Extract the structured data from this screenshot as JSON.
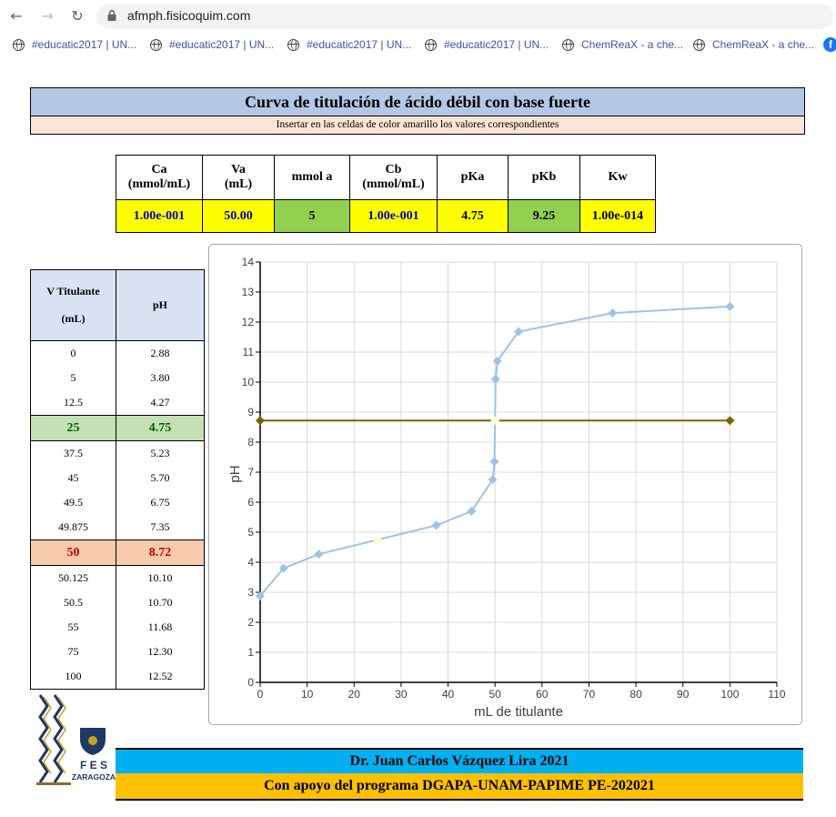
{
  "browser": {
    "url": "afmph.fisicoquim.com",
    "bookmarks": [
      "#educatic2017 | UN...",
      "#educatic2017 | UN...",
      "#educatic2017 | UN...",
      "#educatic2017 | UN...",
      "ChemReaX - a che...",
      "ChemReaX - a che..."
    ]
  },
  "header": {
    "title": "Curva de titulación de ácido débil con base fuerte",
    "subtitle": "Insertar en las celdas de color amarillo los valores correspondientes"
  },
  "params": {
    "headers": [
      "Ca",
      "(mmol/mL)",
      "Va",
      "(mL)",
      "mmol a",
      "Cb",
      "(mmol/mL)",
      "pKa",
      "pKb",
      "Kw"
    ],
    "values": [
      "1.00e-001",
      "50.00",
      "5",
      "1.00e-001",
      "4.75",
      "9.25",
      "1.00e-014"
    ]
  },
  "table": {
    "header_vol": "V Titulante",
    "header_vol_unit": "(mL)",
    "header_ph": "pH",
    "rows": [
      [
        "0",
        "2.88"
      ],
      [
        "5",
        "3.80"
      ],
      [
        "12.5",
        "4.27"
      ],
      [
        "25",
        "4.75"
      ],
      [
        "37.5",
        "5.23"
      ],
      [
        "45",
        "5.70"
      ],
      [
        "49.5",
        "6.75"
      ],
      [
        "49.875",
        "7.35"
      ],
      [
        "50",
        "8.72"
      ],
      [
        "50.125",
        "10.10"
      ],
      [
        "50.5",
        "10.70"
      ],
      [
        "55",
        "11.68"
      ],
      [
        "75",
        "12.30"
      ],
      [
        "100",
        "12.52"
      ]
    ]
  },
  "chart_data": {
    "type": "scatter",
    "xlabel": "mL de titulante",
    "ylabel": "pH",
    "xlim": [
      0,
      110
    ],
    "ylim": [
      0,
      14
    ],
    "xticks": [
      0,
      10,
      20,
      30,
      40,
      50,
      60,
      70,
      80,
      90,
      100,
      110
    ],
    "yticks": [
      0,
      1,
      2,
      3,
      4,
      5,
      6,
      7,
      8,
      9,
      10,
      11,
      12,
      13,
      14
    ],
    "grid": true,
    "series": [
      {
        "color": "#9dc3e6",
        "x": [
          0,
          5,
          12.5,
          25,
          37.5,
          45,
          49.5,
          49.875,
          50,
          50.125,
          50.5,
          55,
          75,
          100
        ],
        "y": [
          2.88,
          3.8,
          4.27,
          4.75,
          5.23,
          5.7,
          6.75,
          7.35,
          8.72,
          10.1,
          10.7,
          11.68,
          12.3,
          12.52
        ],
        "highlight": {
          "25": "#ffffcc",
          "50": "#ffffcc"
        }
      },
      {
        "color": "#7f6000",
        "x": [
          0,
          100
        ],
        "y": [
          8.72,
          8.72
        ]
      }
    ]
  },
  "footer": {
    "credit": "Dr. Juan Carlos Vázquez Lira 2021",
    "support": "Con apoyo del programa DGAPA-UNAM-PAPIME PE-202021",
    "logo_text": "FES ZARAGOZA"
  }
}
